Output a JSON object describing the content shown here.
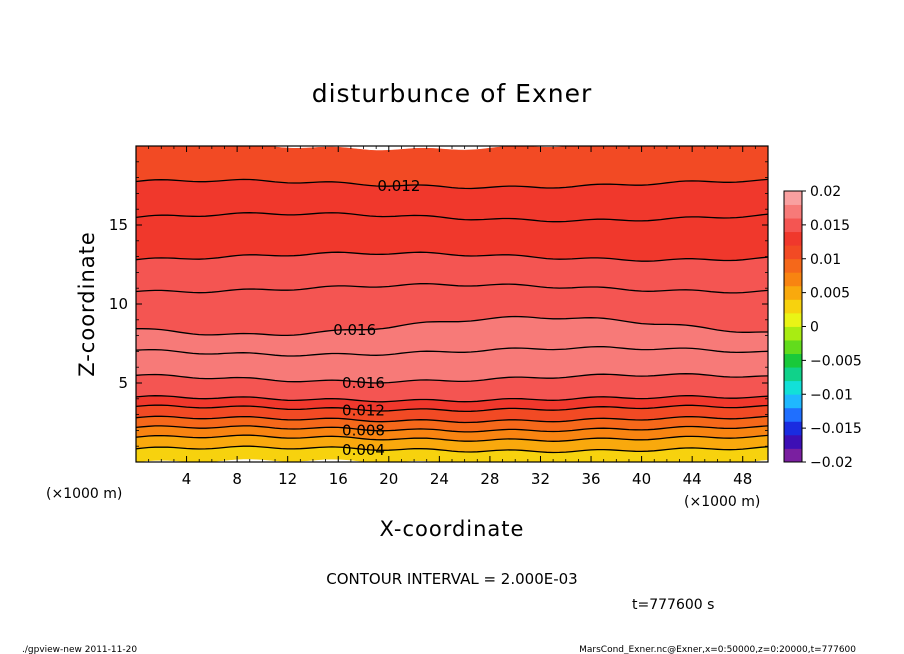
{
  "chart_data": {
    "type": "heatmap",
    "title": "disturbunce of Exner",
    "xlabel": "X-coordinate",
    "ylabel": "Z-coordinate",
    "x_unit": "(×1000 m)",
    "x_unit_right": "(×1000 m)",
    "y_unit": "(×1000 m)",
    "xlim": [
      0,
      50
    ],
    "ylim": [
      0,
      20
    ],
    "x_ticks": [
      4,
      8,
      12,
      16,
      20,
      24,
      28,
      32,
      36,
      40,
      44,
      48
    ],
    "y_ticks": [
      5,
      10,
      15
    ],
    "contour_interval_label": "CONTOUR INTERVAL = 2.000E-03",
    "time_label": "t=777600 s",
    "contour_labels": [
      {
        "text": "0.012",
        "x": 20.8,
        "z": 17.6
      },
      {
        "text": "0.016",
        "x": 17.3,
        "z": 8.6
      },
      {
        "text": "0.016",
        "x": 18.0,
        "z": 5.3
      },
      {
        "text": "0.012",
        "x": 18.0,
        "z": 3.4
      },
      {
        "text": "0.008",
        "x": 18.0,
        "z": 2.1
      },
      {
        "text": "0.004",
        "x": 18.0,
        "z": 0.8
      }
    ],
    "vertical_profile": {
      "z": [
        0,
        0.8,
        1.5,
        2.1,
        2.7,
        3.4,
        4.0,
        5.3,
        7.0,
        8.6,
        11.0,
        13.0,
        15.5,
        17.6,
        20.0
      ],
      "value": [
        0.002,
        0.004,
        0.006,
        0.008,
        0.01,
        0.012,
        0.014,
        0.016,
        0.0175,
        0.016,
        0.015,
        0.014,
        0.013,
        0.012,
        0.011
      ]
    },
    "colorbar": {
      "ticks": [
        "0.02",
        "0.015",
        "0.01",
        "0.005",
        "0",
        "−0.005",
        "−0.01",
        "−0.015",
        "−0.02"
      ],
      "range": [
        -0.02,
        0.02
      ],
      "colors": [
        "#7a1fa0",
        "#3d0fb5",
        "#1a2ce0",
        "#1f6fff",
        "#1fb8ff",
        "#12e0d8",
        "#10d28a",
        "#19c93a",
        "#62dc1c",
        "#a9ec12",
        "#eaf416",
        "#f7d20e",
        "#f9a90d",
        "#f88411",
        "#f5681a",
        "#f24a24",
        "#f0382c",
        "#f45552",
        "#f77a78",
        "#f9a0a0"
      ]
    }
  },
  "footer": {
    "left": "./gpview-new   2011-11-20",
    "right": "MarsCond_Exner.nc@Exner,x=0:50000,z=0:20000,t=777600"
  }
}
